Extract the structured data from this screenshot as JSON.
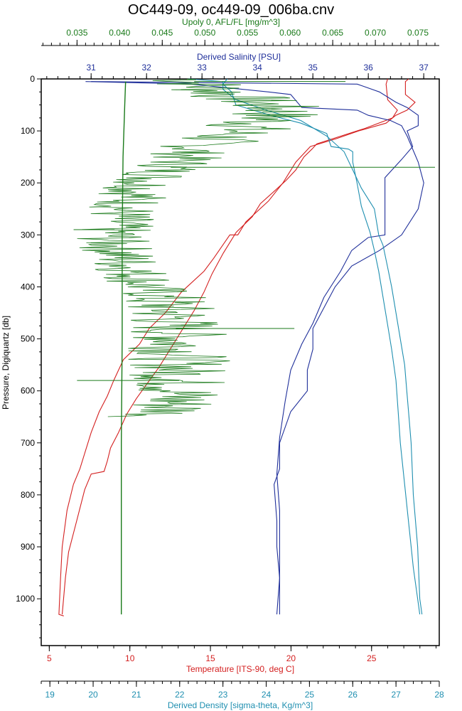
{
  "chart_data": {
    "type": "line",
    "title": "OC449-09, oc449-09_006ba.cnv",
    "colors": {
      "fluor": "#1a7a1a",
      "salinity": "#1f2f9a",
      "temperature": "#d42020",
      "density": "#1f8fb0",
      "frame": "#000000"
    },
    "axes": {
      "y": {
        "label": "Pressure, Digiquartz [db]",
        "range": [
          0,
          1090
        ],
        "inverted": true,
        "ticks": [
          0,
          100,
          200,
          300,
          400,
          500,
          600,
          700,
          800,
          900,
          1000
        ]
      },
      "x_top_outer": {
        "label": "Upoly 0, AFL/FL [mg/m^3]",
        "range": [
          0.0308,
          0.0775
        ],
        "ticks": [
          "0.035",
          "0.040",
          "0.045",
          "0.050",
          "0.055",
          "0.060",
          "0.065",
          "0.070",
          "0.075"
        ],
        "color": "#1a7a1a"
      },
      "x_top_inner": {
        "label": "Derived Salinity [PSU]",
        "range": [
          30.1,
          37.28
        ],
        "ticks": [
          "31",
          "32",
          "33",
          "34",
          "35",
          "36",
          "37"
        ],
        "color": "#1f2f9a"
      },
      "x_bottom_inner": {
        "label": "Temperature [ITS-90, deg C]",
        "range": [
          4.5,
          29.2
        ],
        "ticks": [
          "5",
          "10",
          "15",
          "20",
          "25"
        ],
        "color": "#d42020"
      },
      "x_bottom_outer": {
        "label": "Derived Density [sigma-theta, Kg/m^3]",
        "range": [
          18.8,
          28.0
        ],
        "ticks": [
          "19",
          "20",
          "21",
          "22",
          "23",
          "24",
          "25",
          "26",
          "27",
          "28"
        ],
        "color": "#1f8fb0"
      }
    },
    "series": [
      {
        "key": "temperature",
        "x_axis": "x_bottom_inner",
        "profiles": [
          {
            "points": [
              [
                27.3,
                0
              ],
              [
                27.1,
                5
              ],
              [
                27.1,
                30
              ],
              [
                27.7,
                45
              ],
              [
                27.2,
                60
              ],
              [
                26.5,
                70
              ],
              [
                25.9,
                85
              ],
              [
                24.2,
                100
              ],
              [
                22.8,
                115
              ],
              [
                21.2,
                130
              ],
              [
                20.3,
                160
              ],
              [
                19.5,
                200
              ],
              [
                18.6,
                235
              ],
              [
                17.2,
                275
              ],
              [
                16.7,
                300
              ],
              [
                16.2,
                300
              ],
              [
                15.2,
                345
              ],
              [
                14.6,
                370
              ],
              [
                13.2,
                410
              ],
              [
                12.2,
                450
              ],
              [
                11.2,
                480
              ],
              [
                10.6,
                510
              ],
              [
                9.6,
                540
              ],
              [
                9.0,
                580
              ],
              [
                8.6,
                610
              ],
              [
                8.1,
                640
              ],
              [
                7.6,
                680
              ],
              [
                7.2,
                720
              ],
              [
                6.9,
                750
              ],
              [
                6.5,
                780
              ],
              [
                6.1,
                830
              ],
              [
                5.8,
                900
              ],
              [
                5.7,
                960
              ],
              [
                5.6,
                1030
              ],
              [
                5.9,
                1033
              ]
            ]
          },
          {
            "points": [
              [
                26.0,
                0
              ],
              [
                25.9,
                10
              ],
              [
                26.0,
                40
              ],
              [
                26.6,
                60
              ],
              [
                26.3,
                75
              ],
              [
                24.6,
                95
              ],
              [
                23.1,
                110
              ],
              [
                21.6,
                125
              ],
              [
                21.3,
                135
              ],
              [
                20.8,
                150
              ],
              [
                20.3,
                175
              ],
              [
                19.7,
                195
              ],
              [
                19.0,
                215
              ],
              [
                18.1,
                240
              ],
              [
                17.6,
                265
              ],
              [
                16.6,
                295
              ],
              [
                15.8,
                335
              ],
              [
                15.1,
                375
              ],
              [
                14.6,
                410
              ],
              [
                14.0,
                445
              ],
              [
                13.5,
                470
              ],
              [
                13.0,
                495
              ],
              [
                12.4,
                525
              ],
              [
                11.8,
                555
              ],
              [
                11.1,
                585
              ],
              [
                10.4,
                615
              ],
              [
                9.8,
                645
              ],
              [
                9.3,
                680
              ],
              [
                8.8,
                710
              ],
              [
                8.6,
                735
              ],
              [
                8.4,
                755
              ],
              [
                7.6,
                760
              ],
              [
                7.2,
                790
              ],
              [
                6.7,
                850
              ],
              [
                6.2,
                910
              ],
              [
                6.0,
                960
              ],
              [
                5.8,
                1030
              ]
            ]
          }
        ]
      },
      {
        "key": "salinity",
        "x_axis": "x_top_inner",
        "profiles": [
          {
            "points": [
              [
                30.9,
                5
              ],
              [
                32.8,
                10
              ],
              [
                34.2,
                25
              ],
              [
                34.6,
                30
              ],
              [
                34.8,
                55
              ],
              [
                35.8,
                60
              ],
              [
                36.0,
                70
              ],
              [
                36.4,
                80
              ],
              [
                36.6,
                90
              ],
              [
                36.7,
                110
              ],
              [
                36.9,
                160
              ],
              [
                37.0,
                200
              ],
              [
                36.9,
                250
              ],
              [
                36.6,
                300
              ],
              [
                36.2,
                330
              ],
              [
                35.7,
                360
              ],
              [
                35.4,
                400
              ],
              [
                35.2,
                440
              ],
              [
                35.0,
                480
              ],
              [
                35.0,
                520
              ],
              [
                34.9,
                560
              ],
              [
                34.9,
                600
              ],
              [
                34.6,
                640
              ],
              [
                34.4,
                700
              ],
              [
                34.4,
                750
              ],
              [
                34.3,
                780
              ],
              [
                34.35,
                850
              ],
              [
                34.35,
                900
              ],
              [
                34.4,
                960
              ],
              [
                34.4,
                1030
              ]
            ]
          },
          {
            "points": [
              [
                31.0,
                5
              ],
              [
                35.8,
                10
              ],
              [
                36.2,
                25
              ],
              [
                36.5,
                45
              ],
              [
                36.7,
                55
              ],
              [
                36.9,
                70
              ],
              [
                36.9,
                90
              ],
              [
                36.7,
                100
              ],
              [
                36.8,
                130
              ],
              [
                36.6,
                155
              ],
              [
                36.3,
                190
              ],
              [
                36.3,
                250
              ],
              [
                36.3,
                300
              ],
              [
                36.0,
                305
              ],
              [
                35.7,
                330
              ],
              [
                35.5,
                370
              ],
              [
                35.2,
                420
              ],
              [
                35.0,
                470
              ],
              [
                34.8,
                510
              ],
              [
                34.6,
                560
              ],
              [
                34.5,
                620
              ],
              [
                34.4,
                690
              ],
              [
                34.35,
                760
              ],
              [
                34.4,
                830
              ],
              [
                34.4,
                900
              ],
              [
                34.4,
                960
              ],
              [
                34.35,
                1030
              ]
            ]
          }
        ]
      },
      {
        "key": "density",
        "x_axis": "x_bottom_outer",
        "profiles": [
          {
            "points": [
              [
                22.2,
                0
              ],
              [
                23.0,
                5
              ],
              [
                23.0,
                20
              ],
              [
                23.3,
                40
              ],
              [
                24.0,
                60
              ],
              [
                24.8,
                80
              ],
              [
                25.4,
                110
              ],
              [
                25.8,
                140
              ],
              [
                26.0,
                175
              ],
              [
                26.2,
                210
              ],
              [
                26.5,
                250
              ],
              [
                26.6,
                300
              ],
              [
                26.7,
                320
              ],
              [
                26.8,
                360
              ],
              [
                26.9,
                400
              ],
              [
                27.0,
                450
              ],
              [
                27.1,
                500
              ],
              [
                27.2,
                550
              ],
              [
                27.25,
                600
              ],
              [
                27.3,
                650
              ],
              [
                27.35,
                700
              ],
              [
                27.4,
                800
              ],
              [
                27.5,
                900
              ],
              [
                27.55,
                1000
              ],
              [
                27.6,
                1030
              ]
            ]
          },
          {
            "points": [
              [
                23.1,
                0
              ],
              [
                23.0,
                10
              ],
              [
                23.2,
                25
              ],
              [
                23.3,
                50
              ],
              [
                24.1,
                70
              ],
              [
                24.8,
                85
              ],
              [
                25.4,
                105
              ],
              [
                25.5,
                130
              ],
              [
                25.9,
                135
              ],
              [
                26.0,
                140
              ],
              [
                26.0,
                160
              ],
              [
                26.1,
                200
              ],
              [
                26.2,
                245
              ],
              [
                26.3,
                270
              ],
              [
                26.4,
                295
              ],
              [
                26.5,
                330
              ],
              [
                26.6,
                370
              ],
              [
                26.7,
                420
              ],
              [
                26.8,
                470
              ],
              [
                26.9,
                520
              ],
              [
                27.0,
                580
              ],
              [
                27.05,
                640
              ],
              [
                27.1,
                700
              ],
              [
                27.2,
                780
              ],
              [
                27.3,
                860
              ],
              [
                27.4,
                940
              ],
              [
                27.5,
                1000
              ],
              [
                27.55,
                1030
              ]
            ]
          }
        ]
      },
      {
        "key": "fluor",
        "x_axis": "x_top_outer",
        "baseline": [
          [
            0.0407,
            5
          ],
          [
            0.0406,
            50
          ],
          [
            0.0404,
            150
          ],
          [
            0.0403,
            300
          ],
          [
            0.0403,
            500
          ],
          [
            0.0402,
            700
          ],
          [
            0.0402,
            900
          ],
          [
            0.0402,
            1030
          ]
        ],
        "trend": [
          [
            0.048,
            0
          ],
          [
            0.051,
            20
          ],
          [
            0.055,
            40
          ],
          [
            0.059,
            60
          ],
          [
            0.057,
            80
          ],
          [
            0.054,
            100
          ],
          [
            0.049,
            130
          ],
          [
            0.047,
            160
          ],
          [
            0.043,
            200
          ],
          [
            0.04,
            260
          ],
          [
            0.039,
            310
          ],
          [
            0.041,
            360
          ],
          [
            0.044,
            410
          ],
          [
            0.046,
            450
          ],
          [
            0.047,
            500
          ],
          [
            0.047,
            560
          ],
          [
            0.047,
            600
          ],
          [
            0.046,
            640
          ],
          [
            0.043,
            650
          ]
        ],
        "spikes": [
          [
            0.0665,
            5
          ],
          [
            0.077,
            170
          ],
          [
            0.0346,
            290
          ],
          [
            0.0605,
            480
          ],
          [
            0.035,
            580
          ]
        ]
      }
    ]
  }
}
